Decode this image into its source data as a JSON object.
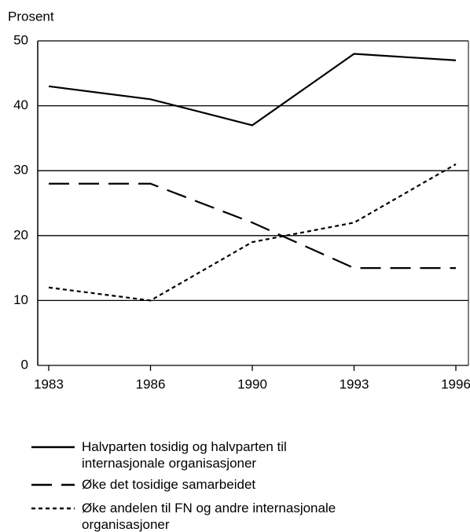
{
  "chart_data": {
    "type": "line",
    "y_label": "Prosent",
    "categories": [
      "1983",
      "1986",
      "1990",
      "1993",
      "1996"
    ],
    "series": [
      {
        "name": "Halvparten tosidig og halvparten til internasjonale organisasjoner",
        "color": "#000000",
        "dash": "solid",
        "values": [
          43,
          41,
          37,
          48,
          47
        ]
      },
      {
        "name": "Øke det tosidige samarbeidet",
        "color": "#000000",
        "dash": "dashed",
        "values": [
          28,
          28,
          22,
          15,
          15
        ]
      },
      {
        "name": "Øke andelen til FN og andre internasjonale organisasjoner",
        "color": "#000000",
        "dash": "dotted",
        "values": [
          12,
          10,
          19,
          22,
          31
        ]
      }
    ],
    "ylim": [
      0,
      50
    ],
    "yticks": [
      0,
      10,
      20,
      30,
      40,
      50
    ],
    "grid": true
  }
}
